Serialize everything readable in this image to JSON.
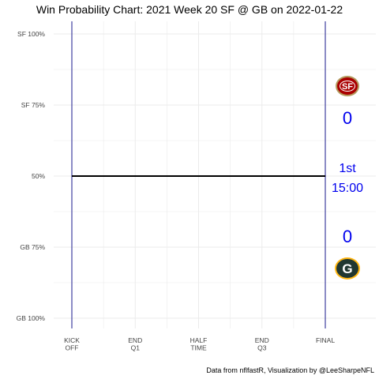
{
  "chart_data": {
    "type": "line",
    "title": "Win Probability Chart: 2021 Week 20 SF @ GB on 2022-01-22",
    "y_tick_labels": [
      "SF 100%",
      "SF 75%",
      "50%",
      "GB 75%",
      "GB 100%"
    ],
    "y_tick_values": [
      0,
      0.25,
      0.5,
      0.75,
      1.0
    ],
    "x_tick_labels": [
      [
        "KICK",
        "OFF"
      ],
      [
        "END",
        "Q1"
      ],
      [
        "HALF",
        "TIME"
      ],
      [
        "END",
        "Q3"
      ],
      [
        "FINAL"
      ]
    ],
    "x_tick_values": [
      0,
      0.25,
      0.5,
      0.75,
      1.0
    ],
    "ylim": [
      0,
      1
    ],
    "grid": true,
    "series": [
      {
        "x": [
          0,
          1.0
        ],
        "y": [
          0.5,
          0.5
        ]
      }
    ],
    "colors": {
      "line": "#000000",
      "period_lines": "#1a1a8c",
      "annotations": "#0000ee",
      "grid": "#ebebeb"
    },
    "annotations": {
      "away_score": "0",
      "home_score": "0",
      "quarter": "1st",
      "clock": "15:00"
    },
    "logos": {
      "away": {
        "team": "SF",
        "text": "SF",
        "colors": [
          "#aa0000",
          "#b3995d"
        ]
      },
      "home": {
        "team": "GB",
        "text": "G",
        "colors": [
          "#203731",
          "#ffb612"
        ]
      }
    },
    "caption": "Data from nflfastR, Visualization by @LeeSharpeNFL"
  }
}
